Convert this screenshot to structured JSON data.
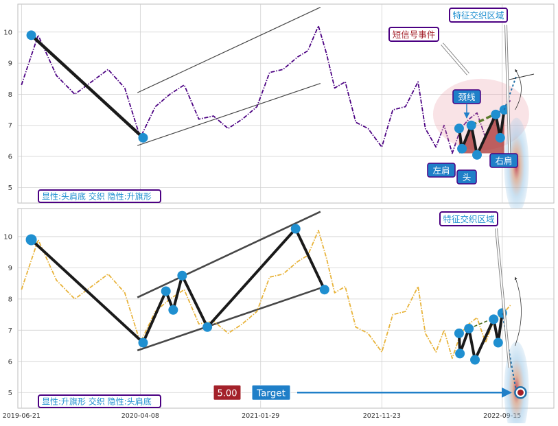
{
  "colors": {
    "panel_bg": "#ffffff",
    "grid": "#cfcfcf",
    "frame": "#bdbdbd",
    "price_top": "#4b0082",
    "price_bottom": "#e8b33a",
    "pattern_line": "#1a1a1a",
    "marker": "#1f8fd0",
    "channel": "#333333",
    "hs_fill": "#a83232",
    "neckline": "#5a7a2a",
    "label_border": "#4b0082",
    "label_text": "#1f8fd0",
    "callout_fill": "#1f7fc8",
    "target_value_fill": "#a3212a",
    "target_arrow": "#1f7fc8"
  },
  "chart_data": [
    {
      "type": "line",
      "panel": "top",
      "ylim": [
        4.5,
        10.9
      ],
      "yticks": [
        "5",
        "6",
        "7",
        "8",
        "9",
        "10"
      ],
      "x_range": [
        "2019-06-12",
        "2023-01-20"
      ],
      "grid": true,
      "price_series": {
        "style": "dash-dot",
        "x": [
          "2019-06-21",
          "2019-08-01",
          "2019-09-15",
          "2019-10-30",
          "2019-12-10",
          "2020-01-20",
          "2020-03-01",
          "2020-04-08",
          "2020-05-15",
          "2020-06-20",
          "2020-07-25",
          "2020-08-30",
          "2020-10-05",
          "2020-11-10",
          "2020-12-15",
          "2021-01-20",
          "2021-02-20",
          "2021-03-25",
          "2021-04-30",
          "2021-05-25",
          "2021-06-20",
          "2021-07-10",
          "2021-07-30",
          "2021-08-25",
          "2021-09-20",
          "2021-10-20",
          "2021-11-23",
          "2021-12-20",
          "2022-01-20",
          "2022-02-20",
          "2022-03-10",
          "2022-04-05",
          "2022-04-25",
          "2022-05-15",
          "2022-06-05",
          "2022-06-25",
          "2022-07-15",
          "2022-08-05",
          "2022-08-25",
          "2022-09-15",
          "2022-10-05"
        ],
        "y": [
          8.3,
          9.9,
          8.6,
          8.0,
          8.4,
          8.8,
          8.2,
          6.6,
          7.6,
          8.0,
          8.3,
          7.2,
          7.3,
          6.9,
          7.2,
          7.6,
          8.7,
          8.8,
          9.2,
          9.4,
          10.2,
          9.3,
          8.2,
          8.4,
          7.1,
          6.9,
          6.3,
          7.5,
          7.6,
          8.4,
          6.9,
          6.3,
          7.0,
          6.1,
          6.9,
          7.2,
          7.4,
          6.6,
          7.3,
          7.5,
          7.8
        ]
      },
      "pattern_points": [
        {
          "x": "2019-07-15",
          "y": 9.9
        },
        {
          "x": "2020-04-15",
          "y": 6.6
        }
      ],
      "channel_lines": [
        {
          "x": [
            "2020-04-01",
            "2021-06-25"
          ],
          "y": [
            6.35,
            8.35
          ]
        },
        {
          "x": [
            "2020-04-01",
            "2021-06-25"
          ],
          "y": [
            8.05,
            10.8
          ]
        }
      ],
      "head_shoulders": [
        {
          "x": "2022-06-01",
          "y": 6.9
        },
        {
          "x": "2022-06-08",
          "y": 6.25
        },
        {
          "x": "2022-07-01",
          "y": 7.0
        },
        {
          "x": "2022-07-15",
          "y": 6.05
        },
        {
          "x": "2022-08-30",
          "y": 7.35
        },
        {
          "x": "2022-09-10",
          "y": 6.6
        },
        {
          "x": "2022-09-20",
          "y": 7.5
        }
      ],
      "neckline": {
        "x": [
          "2022-07-01",
          "2022-09-20"
        ],
        "y": [
          7.0,
          7.5
        ]
      },
      "annotations": {
        "short_signal": "短信号事件",
        "feature_zone": "特征交织区域",
        "neckline_label": "颈线",
        "left_shoulder": "左肩",
        "head": "头",
        "right_shoulder": "右肩"
      },
      "legend": "显性:头肩底 交织 隐性:升旗形"
    },
    {
      "type": "line",
      "panel": "bottom",
      "ylim": [
        4.5,
        10.9
      ],
      "yticks": [
        "5",
        "6",
        "7",
        "8",
        "9",
        "10"
      ],
      "xticks": [
        "2019-06-21",
        "2020-04-08",
        "2021-01-29",
        "2021-11-23",
        "2022-09-15"
      ],
      "x_range": [
        "2019-06-12",
        "2023-01-20"
      ],
      "grid": true,
      "price_series": {
        "style": "dash-dot",
        "x": [
          "2019-06-21",
          "2019-08-01",
          "2019-09-15",
          "2019-10-30",
          "2019-12-10",
          "2020-01-20",
          "2020-03-01",
          "2020-04-08",
          "2020-05-15",
          "2020-06-20",
          "2020-07-25",
          "2020-08-30",
          "2020-10-05",
          "2020-11-10",
          "2020-12-15",
          "2021-01-20",
          "2021-02-20",
          "2021-03-25",
          "2021-04-30",
          "2021-05-25",
          "2021-06-20",
          "2021-07-10",
          "2021-07-30",
          "2021-08-25",
          "2021-09-20",
          "2021-10-20",
          "2021-11-23",
          "2021-12-20",
          "2022-01-20",
          "2022-02-20",
          "2022-03-10",
          "2022-04-05",
          "2022-04-25",
          "2022-05-15",
          "2022-06-05",
          "2022-06-25",
          "2022-07-15",
          "2022-08-05",
          "2022-08-25",
          "2022-09-15",
          "2022-10-05"
        ],
        "y": [
          8.3,
          9.9,
          8.6,
          8.0,
          8.4,
          8.8,
          8.2,
          6.6,
          7.6,
          8.0,
          8.3,
          7.2,
          7.3,
          6.9,
          7.2,
          7.6,
          8.7,
          8.8,
          9.2,
          9.4,
          10.2,
          9.3,
          8.2,
          8.4,
          7.1,
          6.9,
          6.3,
          7.5,
          7.6,
          8.4,
          6.9,
          6.3,
          7.0,
          6.1,
          6.9,
          7.2,
          7.4,
          6.6,
          7.3,
          7.5,
          7.8
        ]
      },
      "pattern_points": [
        {
          "x": "2019-07-15",
          "y": 9.9
        },
        {
          "x": "2020-04-15",
          "y": 6.6
        },
        {
          "x": "2020-06-10",
          "y": 8.25
        },
        {
          "x": "2020-06-28",
          "y": 7.65
        },
        {
          "x": "2020-07-20",
          "y": 8.75
        },
        {
          "x": "2020-09-20",
          "y": 7.1
        },
        {
          "x": "2021-04-25",
          "y": 10.25
        },
        {
          "x": "2021-07-05",
          "y": 8.3
        }
      ],
      "channel_lines": [
        {
          "x": [
            "2020-04-01",
            "2021-06-25"
          ],
          "y": [
            6.35,
            8.35
          ]
        },
        {
          "x": [
            "2020-04-01",
            "2021-06-25"
          ],
          "y": [
            8.05,
            10.8
          ]
        }
      ],
      "head_shoulders": [
        {
          "x": "2022-06-01",
          "y": 6.9
        },
        {
          "x": "2022-06-03",
          "y": 6.25
        },
        {
          "x": "2022-06-25",
          "y": 7.05
        },
        {
          "x": "2022-07-10",
          "y": 6.05
        },
        {
          "x": "2022-08-25",
          "y": 7.35
        },
        {
          "x": "2022-09-05",
          "y": 6.6
        },
        {
          "x": "2022-09-15",
          "y": 7.55
        }
      ],
      "neckline": {
        "x": [
          "2022-06-25",
          "2022-09-15"
        ],
        "y": [
          7.05,
          7.5
        ]
      },
      "target": {
        "label": "Target",
        "value": "5.00",
        "x": "2022-10-30",
        "y": 5.0
      },
      "annotations": {
        "feature_zone": "特征交织区域"
      },
      "legend": "显性:升旗形 交织 隐性:头肩底"
    }
  ]
}
